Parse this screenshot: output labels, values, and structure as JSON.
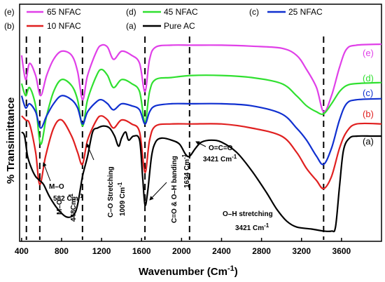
{
  "chart_data": {
    "type": "line",
    "xlabel": "Wavenumber (Cm",
    "xlabel_sup": "-1",
    "xlabel_tail": ")",
    "ylabel": "% Transimittance",
    "xlim": [
      380,
      4000
    ],
    "xticks": [
      400,
      800,
      1200,
      1600,
      2000,
      2400,
      2800,
      3200,
      3600
    ],
    "grid": false,
    "legend_position": "top",
    "legend": [
      {
        "code": "(e)",
        "label": "65 NFAC",
        "color": "#e040e8"
      },
      {
        "code": "(d)",
        "label": "45 NFAC",
        "color": "#30e030"
      },
      {
        "code": "(c)",
        "label": "25 NFAC",
        "color": "#1030d0"
      },
      {
        "code": "(b)",
        "label": "10 NFAC",
        "color": "#e02020"
      },
      {
        "code": "(a)",
        "label": "Pure AC",
        "color": "#000000"
      }
    ],
    "series": [
      {
        "name": "(e)",
        "color": "#e040e8",
        "points": [
          [
            400,
            90
          ],
          [
            440,
            78
          ],
          [
            480,
            86
          ],
          [
            540,
            80
          ],
          [
            590,
            70
          ],
          [
            650,
            80
          ],
          [
            720,
            88
          ],
          [
            800,
            92
          ],
          [
            900,
            90
          ],
          [
            960,
            82
          ],
          [
            1010,
            68
          ],
          [
            1060,
            80
          ],
          [
            1150,
            92
          ],
          [
            1200,
            95
          ],
          [
            1260,
            94
          ],
          [
            1320,
            88
          ],
          [
            1400,
            92
          ],
          [
            1500,
            90
          ],
          [
            1580,
            86
          ],
          [
            1634,
            72
          ],
          [
            1680,
            88
          ],
          [
            1740,
            94
          ],
          [
            1900,
            95
          ],
          [
            2100,
            95
          ],
          [
            2400,
            95
          ],
          [
            2700,
            94.5
          ],
          [
            3000,
            93.5
          ],
          [
            3150,
            90
          ],
          [
            3250,
            83
          ],
          [
            3350,
            74
          ],
          [
            3421,
            62
          ],
          [
            3500,
            70
          ],
          [
            3580,
            84
          ],
          [
            3650,
            93
          ],
          [
            3750,
            95
          ],
          [
            4000,
            95.5
          ]
        ]
      },
      {
        "name": "(d)",
        "color": "#30e030",
        "points": [
          [
            400,
            76
          ],
          [
            440,
            70
          ],
          [
            480,
            74
          ],
          [
            540,
            65
          ],
          [
            590,
            46
          ],
          [
            650,
            60
          ],
          [
            720,
            72
          ],
          [
            800,
            78
          ],
          [
            900,
            75
          ],
          [
            960,
            68
          ],
          [
            1010,
            55
          ],
          [
            1060,
            68
          ],
          [
            1150,
            80
          ],
          [
            1200,
            83
          ],
          [
            1260,
            80
          ],
          [
            1320,
            74
          ],
          [
            1400,
            78
          ],
          [
            1500,
            76
          ],
          [
            1580,
            72
          ],
          [
            1634,
            57
          ],
          [
            1680,
            72
          ],
          [
            1740,
            78
          ],
          [
            1900,
            79
          ],
          [
            2100,
            80
          ],
          [
            2400,
            80
          ],
          [
            2700,
            79
          ],
          [
            3000,
            76
          ],
          [
            3150,
            70
          ],
          [
            3250,
            65
          ],
          [
            3350,
            62
          ],
          [
            3421,
            61
          ],
          [
            3500,
            66
          ],
          [
            3580,
            72
          ],
          [
            3650,
            75
          ],
          [
            3750,
            76
          ],
          [
            4000,
            76.5
          ]
        ]
      },
      {
        "name": "(c)",
        "color": "#1030d0",
        "points": [
          [
            400,
            70
          ],
          [
            440,
            64
          ],
          [
            480,
            66
          ],
          [
            540,
            62
          ],
          [
            590,
            54
          ],
          [
            650,
            60
          ],
          [
            720,
            66
          ],
          [
            800,
            70
          ],
          [
            900,
            68
          ],
          [
            960,
            64
          ],
          [
            1010,
            56
          ],
          [
            1060,
            62
          ],
          [
            1150,
            67
          ],
          [
            1200,
            68
          ],
          [
            1260,
            66
          ],
          [
            1320,
            63
          ],
          [
            1400,
            66
          ],
          [
            1500,
            65
          ],
          [
            1580,
            63
          ],
          [
            1634,
            56
          ],
          [
            1680,
            62
          ],
          [
            1740,
            65
          ],
          [
            1900,
            66
          ],
          [
            2100,
            66
          ],
          [
            2400,
            66
          ],
          [
            2700,
            65
          ],
          [
            3000,
            61
          ],
          [
            3150,
            54
          ],
          [
            3250,
            48
          ],
          [
            3350,
            40
          ],
          [
            3421,
            36
          ],
          [
            3500,
            44
          ],
          [
            3580,
            58
          ],
          [
            3650,
            66
          ],
          [
            3750,
            68
          ],
          [
            4000,
            68.5
          ]
        ]
      },
      {
        "name": "(b)",
        "color": "#e02020",
        "points": [
          [
            400,
            60
          ],
          [
            440,
            58
          ],
          [
            480,
            56
          ],
          [
            540,
            42
          ],
          [
            582,
            26
          ],
          [
            640,
            40
          ],
          [
            720,
            54
          ],
          [
            800,
            58
          ],
          [
            900,
            50
          ],
          [
            960,
            42
          ],
          [
            1009,
            36
          ],
          [
            1060,
            48
          ],
          [
            1150,
            58
          ],
          [
            1200,
            60
          ],
          [
            1260,
            58
          ],
          [
            1320,
            54
          ],
          [
            1400,
            58
          ],
          [
            1500,
            56
          ],
          [
            1580,
            52
          ],
          [
            1634,
            32
          ],
          [
            1680,
            48
          ],
          [
            1740,
            55
          ],
          [
            1900,
            56
          ],
          [
            2100,
            56
          ],
          [
            2400,
            56
          ],
          [
            2700,
            54
          ],
          [
            3000,
            50
          ],
          [
            3150,
            42
          ],
          [
            3250,
            34
          ],
          [
            3350,
            28
          ],
          [
            3421,
            24
          ],
          [
            3500,
            30
          ],
          [
            3580,
            44
          ],
          [
            3650,
            52
          ],
          [
            3750,
            56
          ],
          [
            4000,
            56
          ]
        ]
      },
      {
        "name": "(a)",
        "color": "#000000",
        "points": [
          [
            400,
            52
          ],
          [
            430,
            50
          ],
          [
            460,
            40
          ],
          [
            500,
            34
          ],
          [
            540,
            30
          ],
          [
            582,
            28
          ],
          [
            620,
            26
          ],
          [
            680,
            20
          ],
          [
            760,
            14
          ],
          [
            848,
            10
          ],
          [
            920,
            11
          ],
          [
            960,
            16
          ],
          [
            1009,
            30
          ],
          [
            1060,
            40
          ],
          [
            1110,
            52
          ],
          [
            1160,
            54
          ],
          [
            1220,
            55
          ],
          [
            1280,
            54
          ],
          [
            1330,
            50
          ],
          [
            1370,
            45
          ],
          [
            1400,
            49
          ],
          [
            1440,
            52
          ],
          [
            1470,
            48
          ],
          [
            1520,
            50
          ],
          [
            1580,
            48
          ],
          [
            1610,
            30
          ],
          [
            1634,
            16
          ],
          [
            1660,
            22
          ],
          [
            1700,
            40
          ],
          [
            1740,
            47
          ],
          [
            1800,
            49
          ],
          [
            1900,
            48
          ],
          [
            1980,
            46
          ],
          [
            2040,
            41
          ],
          [
            2080,
            40
          ],
          [
            2140,
            44
          ],
          [
            2200,
            47
          ],
          [
            2300,
            48
          ],
          [
            2400,
            47
          ],
          [
            2550,
            42
          ],
          [
            2700,
            33
          ],
          [
            2850,
            22
          ],
          [
            2950,
            14
          ],
          [
            3050,
            8
          ],
          [
            3150,
            5
          ],
          [
            3300,
            4
          ],
          [
            3421,
            3
          ],
          [
            3500,
            3
          ],
          [
            3540,
            5
          ],
          [
            3580,
            25
          ],
          [
            3620,
            43
          ],
          [
            3680,
            49
          ],
          [
            3760,
            50
          ],
          [
            3900,
            50
          ],
          [
            4000,
            50
          ]
        ]
      }
    ],
    "annotations": [
      {
        "text": "(e)",
        "series": "(e)"
      },
      {
        "text": "(d)",
        "series": "(d)"
      },
      {
        "text": "(c)",
        "series": "(c)"
      },
      {
        "text": "(b)",
        "series": "(b)"
      },
      {
        "text": "(a)",
        "series": "(a)"
      },
      {
        "text": "M–O",
        "lines": [
          "582 Cm",
          "-1"
        ]
      },
      {
        "text": "M–O",
        "value": "448Cm",
        "sup": "-1"
      },
      {
        "text": "C–O Stretching",
        "value": "1009 Cm",
        "sup": "-1"
      },
      {
        "text": "C=O & O–H banding",
        "value": "1634 Cm",
        "sup": "-1"
      },
      {
        "text": "O=C=O",
        "value": "3421 Cm",
        "sup": "-1"
      },
      {
        "text": "O–H stretching",
        "value": "3421 Cm",
        "sup": "-1"
      }
    ],
    "dashed_markers": [
      448,
      582,
      1009,
      1634,
      2080,
      3421
    ]
  }
}
